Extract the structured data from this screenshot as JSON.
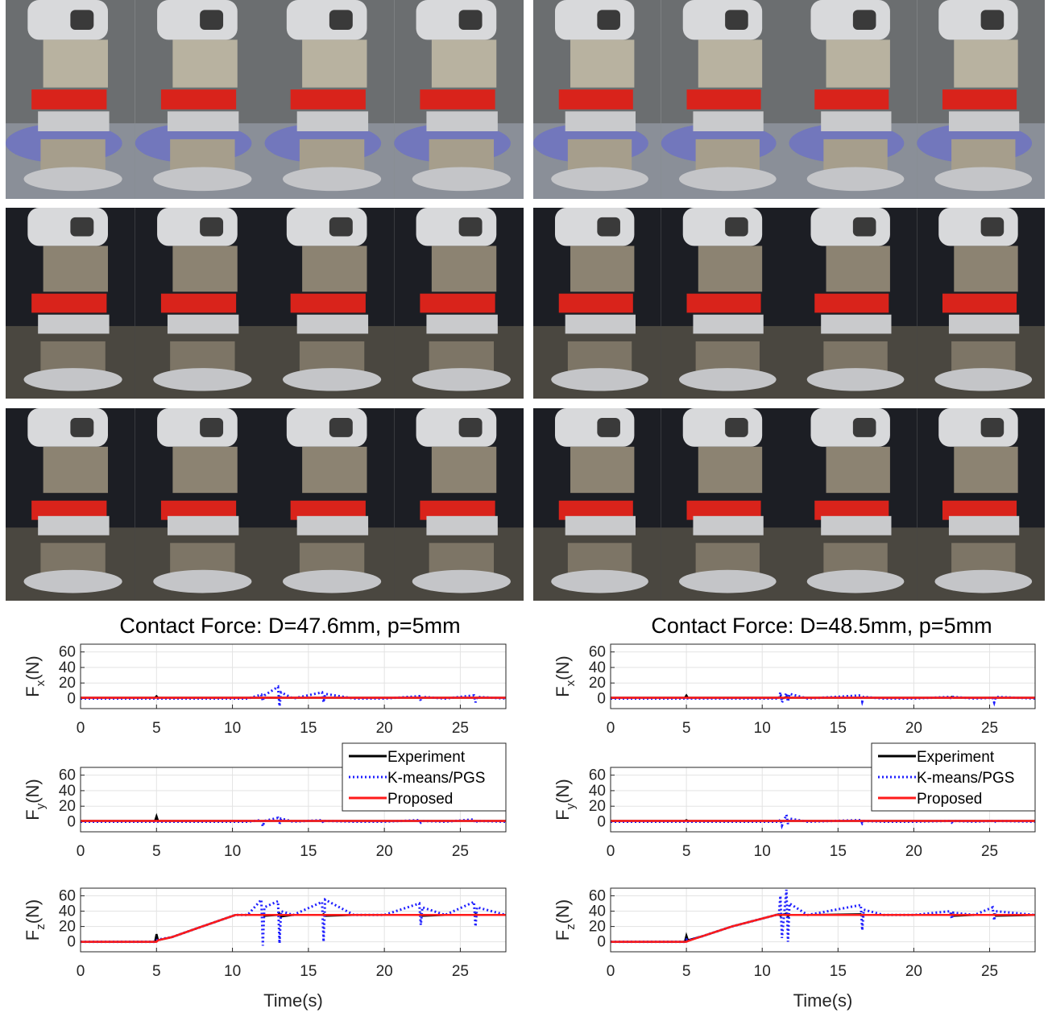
{
  "chart_data": [
    {
      "type": "line",
      "title": "Contact Force: D=47.6mm, p=5mm",
      "ylabel": {
        "main": "F",
        "sub": "x",
        "unit": "(N)"
      },
      "x": [
        0,
        2,
        4,
        4.9,
        5,
        5.1,
        6,
        8,
        10.2,
        11,
        11.9,
        12,
        12.1,
        13,
        13.1,
        13.2,
        14,
        15.9,
        16,
        16.1,
        18,
        20,
        22.3,
        22.4,
        22.5,
        24,
        25.9,
        26,
        26.1,
        28
      ],
      "xlim": [
        0,
        28
      ],
      "xticks": [
        0,
        5,
        10,
        15,
        20,
        25
      ],
      "ylim": [
        -13,
        70
      ],
      "yticks": [
        0,
        20,
        40,
        60
      ],
      "grid": true,
      "series": [
        {
          "color": "#000000",
          "line_style": "solid",
          "values": [
            1,
            1,
            1,
            1,
            3,
            1,
            1,
            1,
            1,
            1,
            1,
            1,
            1,
            1,
            1,
            1,
            1,
            1,
            1,
            1,
            1,
            1,
            1,
            1,
            1,
            1,
            1,
            1,
            1,
            1
          ]
        },
        {
          "color": "#1f1fff",
          "line_style": "dotted",
          "values": [
            0,
            0,
            0,
            0,
            0,
            0,
            0,
            0,
            0,
            0,
            5,
            -3,
            4,
            15,
            -10,
            8,
            0,
            8,
            -5,
            6,
            0,
            0,
            3,
            -3,
            2,
            0,
            4,
            -5,
            2,
            0
          ]
        },
        {
          "color": "#ff1a1a",
          "line_style": "solid",
          "values": [
            1,
            1,
            1,
            1,
            1,
            1,
            1,
            1,
            1,
            1,
            1,
            1,
            1,
            1,
            1,
            1,
            1,
            1,
            1,
            1,
            1,
            1,
            1,
            1,
            1,
            1,
            1,
            1,
            1,
            1
          ]
        }
      ]
    },
    {
      "type": "line",
      "ylabel": {
        "main": "F",
        "sub": "y",
        "unit": "(N)"
      },
      "x": [
        0,
        2,
        4,
        4.9,
        5,
        5.1,
        6,
        8,
        10.2,
        11,
        11.9,
        12,
        12.1,
        13,
        13.1,
        13.2,
        14,
        15.9,
        16,
        16.1,
        18,
        20,
        22.3,
        22.4,
        22.5,
        24,
        25.9,
        26,
        26.1,
        28
      ],
      "xlim": [
        0,
        28
      ],
      "xticks": [
        0,
        5,
        10,
        15,
        20,
        25
      ],
      "ylim": [
        -13,
        70
      ],
      "yticks": [
        0,
        20,
        40,
        60
      ],
      "grid": true,
      "legend": "upper right",
      "series": [
        {
          "name": "Experiment",
          "color": "#000000",
          "line_style": "solid",
          "values": [
            1,
            1,
            1,
            1,
            7,
            1,
            1,
            1,
            1,
            1,
            1,
            1,
            1,
            1,
            1,
            1,
            1,
            1,
            1,
            1,
            1,
            1,
            1,
            1,
            1,
            1,
            1,
            1,
            1,
            1
          ]
        },
        {
          "name": "K-means/PGS",
          "color": "#1f1fff",
          "line_style": "dotted",
          "values": [
            0,
            0,
            0,
            0,
            0,
            0,
            0,
            0,
            0,
            0,
            2,
            -6,
            1,
            5,
            -3,
            4,
            0,
            2,
            -2,
            1,
            0,
            0,
            2,
            -1,
            1,
            0,
            3,
            -2,
            1,
            0
          ]
        },
        {
          "name": "Proposed",
          "color": "#ff1a1a",
          "line_style": "solid",
          "values": [
            1,
            1,
            1,
            1,
            1,
            1,
            1,
            1,
            1,
            1,
            1,
            1,
            1,
            1,
            1,
            1,
            1,
            1,
            1,
            1,
            1,
            1,
            1,
            1,
            1,
            1,
            1,
            1,
            1,
            1
          ]
        }
      ]
    },
    {
      "type": "line",
      "ylabel": {
        "main": "F",
        "sub": "z",
        "unit": "(N)"
      },
      "xlabel": "Time(s)",
      "x": [
        0,
        2,
        4,
        4.9,
        5,
        5.1,
        6,
        8,
        10.2,
        11,
        11.9,
        12,
        12.1,
        13,
        13.1,
        13.2,
        14,
        15.9,
        16,
        16.1,
        18,
        20,
        22.3,
        22.4,
        22.5,
        24,
        25.9,
        26,
        26.1,
        28
      ],
      "xlim": [
        0,
        28
      ],
      "xticks": [
        0,
        5,
        10,
        15,
        20,
        25
      ],
      "ylim": [
        -13,
        70
      ],
      "yticks": [
        0,
        20,
        40,
        60
      ],
      "grid": true,
      "series": [
        {
          "color": "#000000",
          "line_style": "solid",
          "values": [
            0,
            0,
            0,
            0,
            10,
            2,
            6,
            20,
            35,
            35,
            35,
            36,
            34,
            35,
            37,
            33,
            35,
            35,
            36,
            34,
            35,
            35,
            35,
            36,
            34,
            35,
            35,
            36,
            35,
            35
          ]
        },
        {
          "color": "#1f1fff",
          "line_style": "dotted",
          "values": [
            0,
            0,
            0,
            0,
            2,
            3,
            6,
            20,
            35,
            35,
            55,
            -5,
            45,
            53,
            -2,
            40,
            35,
            52,
            0,
            55,
            35,
            35,
            50,
            22,
            45,
            35,
            52,
            20,
            45,
            35
          ]
        },
        {
          "color": "#ff1a1a",
          "line_style": "solid",
          "values": [
            0,
            0,
            0,
            0,
            0,
            2,
            6,
            20,
            35,
            35,
            35,
            35,
            35,
            35,
            35,
            35,
            35,
            35,
            35,
            35,
            35,
            35,
            35,
            35,
            35,
            35,
            35,
            35,
            35,
            35
          ]
        }
      ]
    },
    {
      "type": "line",
      "title": "Contact Force: D=48.5mm, p=5mm",
      "ylabel": {
        "main": "F",
        "sub": "x",
        "unit": "(N)"
      },
      "x": [
        0,
        2,
        4,
        4.9,
        5,
        5.1,
        6,
        8,
        10.9,
        11.1,
        11.2,
        11.3,
        11.6,
        11.7,
        11.8,
        13,
        16.5,
        16.6,
        16.7,
        18,
        20,
        22.4,
        22.5,
        22.6,
        24,
        25.2,
        25.3,
        25.4,
        28
      ],
      "xlim": [
        0,
        28
      ],
      "xticks": [
        0,
        5,
        10,
        15,
        20,
        25
      ],
      "ylim": [
        -13,
        70
      ],
      "yticks": [
        0,
        20,
        40,
        60
      ],
      "grid": true,
      "series": [
        {
          "color": "#000000",
          "line_style": "solid",
          "values": [
            1,
            1,
            1,
            1,
            4,
            1,
            1,
            1,
            1,
            1,
            2,
            0,
            2,
            1,
            1,
            1,
            1,
            1,
            1,
            1,
            1,
            1,
            2,
            1,
            1,
            1,
            1,
            1,
            1
          ]
        },
        {
          "color": "#1f1fff",
          "line_style": "dotted",
          "values": [
            0,
            0,
            0,
            0,
            1,
            0,
            0,
            0,
            0,
            0,
            8,
            -5,
            7,
            -4,
            6,
            0,
            4,
            -4,
            2,
            0,
            0,
            2,
            -1,
            2,
            0,
            1,
            -5,
            2,
            0
          ]
        },
        {
          "color": "#ff1a1a",
          "line_style": "solid",
          "values": [
            1,
            1,
            1,
            1,
            1,
            1,
            1,
            1,
            1,
            1,
            1,
            1,
            1,
            1,
            1,
            1,
            1,
            1,
            1,
            1,
            1,
            1,
            1,
            1,
            1,
            1,
            1,
            1,
            1
          ]
        }
      ]
    },
    {
      "type": "line",
      "ylabel": {
        "main": "F",
        "sub": "y",
        "unit": "(N)"
      },
      "x": [
        0,
        2,
        4,
        4.9,
        5,
        5.1,
        6,
        8,
        10.9,
        11.1,
        11.2,
        11.3,
        11.6,
        11.7,
        11.8,
        13,
        16.5,
        16.6,
        16.7,
        18,
        20,
        22.4,
        22.5,
        22.6,
        24,
        25.2,
        25.3,
        25.4,
        28
      ],
      "xlim": [
        0,
        28
      ],
      "xticks": [
        0,
        5,
        10,
        15,
        20,
        25
      ],
      "ylim": [
        -13,
        70
      ],
      "yticks": [
        0,
        20,
        40,
        60
      ],
      "grid": true,
      "legend": "upper right",
      "series": [
        {
          "name": "Experiment",
          "color": "#000000",
          "line_style": "solid",
          "values": [
            1,
            1,
            1,
            1,
            2,
            1,
            1,
            1,
            1,
            1,
            1,
            1,
            1,
            1,
            1,
            1,
            1,
            1,
            1,
            1,
            1,
            1,
            1,
            1,
            1,
            1,
            1,
            1,
            1
          ]
        },
        {
          "name": "K-means/PGS",
          "color": "#1f1fff",
          "line_style": "dotted",
          "values": [
            0,
            0,
            0,
            0,
            0,
            0,
            0,
            0,
            0,
            0,
            3,
            -5,
            9,
            -3,
            4,
            0,
            2,
            -2,
            1,
            0,
            0,
            1,
            -1,
            1,
            0,
            1,
            -1,
            1,
            0
          ]
        },
        {
          "name": "Proposed",
          "color": "#ff1a1a",
          "line_style": "solid",
          "values": [
            1,
            1,
            1,
            1,
            1,
            1,
            1,
            1,
            1,
            1,
            1,
            1,
            1,
            1,
            1,
            1,
            1,
            1,
            1,
            1,
            1,
            1,
            1,
            1,
            1,
            1,
            1,
            1,
            1
          ]
        }
      ]
    },
    {
      "type": "line",
      "ylabel": {
        "main": "F",
        "sub": "z",
        "unit": "(N)"
      },
      "xlabel": "Time(s)",
      "x": [
        0,
        2,
        4,
        4.9,
        5,
        5.1,
        6,
        8,
        10.9,
        11.1,
        11.2,
        11.3,
        11.6,
        11.7,
        11.8,
        13,
        16.5,
        16.6,
        16.7,
        18,
        20,
        22.4,
        22.5,
        22.6,
        24,
        25.2,
        25.3,
        25.4,
        28
      ],
      "xlim": [
        0,
        28
      ],
      "xticks": [
        0,
        5,
        10,
        15,
        20,
        25
      ],
      "ylim": [
        -13,
        70
      ],
      "yticks": [
        0,
        20,
        40,
        60
      ],
      "grid": true,
      "series": [
        {
          "color": "#000000",
          "line_style": "solid",
          "values": [
            0,
            0,
            0,
            0,
            8,
            2,
            7,
            20,
            35,
            36,
            34,
            35,
            37,
            33,
            35,
            35,
            36,
            34,
            35,
            35,
            35,
            35,
            36,
            34,
            35,
            35,
            36,
            34,
            35
          ]
        },
        {
          "color": "#1f1fff",
          "line_style": "dotted",
          "values": [
            0,
            0,
            0,
            0,
            3,
            2,
            7,
            20,
            35,
            35,
            60,
            5,
            68,
            0,
            50,
            35,
            48,
            15,
            42,
            35,
            35,
            40,
            30,
            38,
            35,
            45,
            28,
            40,
            35
          ]
        },
        {
          "color": "#ff1a1a",
          "line_style": "solid",
          "values": [
            0,
            0,
            0,
            0,
            0,
            1,
            7,
            20,
            35,
            35,
            35,
            35,
            35,
            35,
            35,
            35,
            35,
            35,
            35,
            35,
            35,
            35,
            35,
            35,
            35,
            35,
            35,
            35,
            35
          ]
        }
      ]
    }
  ]
}
